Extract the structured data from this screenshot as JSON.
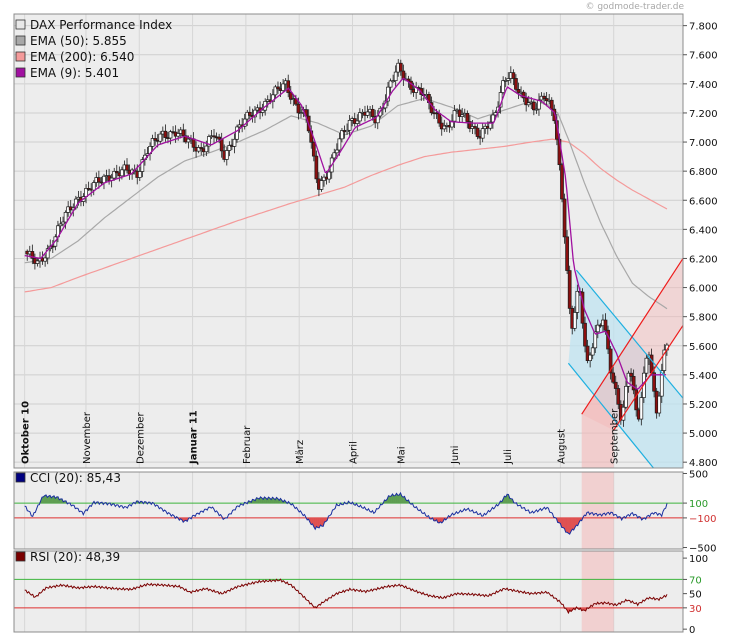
{
  "watermark": "© godmode-trader.de",
  "chart_data": {
    "type": "candlestick",
    "price_panel": {
      "y_ticks": [
        "7.800",
        "7.600",
        "7.400",
        "7.200",
        "7.000",
        "6.800",
        "6.600",
        "6.400",
        "6.200",
        "6.000",
        "5.800",
        "5.600",
        "5.400",
        "5.200",
        "5.000",
        "4.800"
      ],
      "y_tick_values": [
        7800,
        7600,
        7400,
        7200,
        7000,
        6800,
        6600,
        6400,
        6200,
        6000,
        5800,
        5600,
        5400,
        5200,
        5000,
        4800
      ],
      "ylim": [
        4760,
        7880
      ],
      "x_labels": [
        "Oktober 10",
        "November",
        "Dezember",
        "Januar 11",
        "Februar",
        "März",
        "April",
        "Mai",
        "Juni",
        "Juli",
        "August",
        "September"
      ],
      "x_label_bold": [
        true,
        false,
        false,
        true,
        false,
        false,
        false,
        false,
        false,
        false,
        false,
        false
      ],
      "x_label_time": [
        0.0,
        1.15,
        2.15,
        3.15,
        4.15,
        5.15,
        6.15,
        7.05,
        8.05,
        9.05,
        10.05,
        11.05
      ],
      "x_range": [
        -0.2,
        12.35
      ],
      "legend": [
        {
          "label": "DAX Performance Index",
          "color": "#e8e8e8"
        },
        {
          "label": "EMA (50): 5.855",
          "color": "#a8a8a8"
        },
        {
          "label": "EMA (200): 6.540",
          "color": "#f49a9a"
        },
        {
          "label": "EMA (9): 5.401",
          "color": "#a010a0"
        }
      ],
      "price_anchors": [
        {
          "t": 0.0,
          "p": 6250
        },
        {
          "t": 0.25,
          "p": 6150
        },
        {
          "t": 0.45,
          "p": 6270
        },
        {
          "t": 0.7,
          "p": 6450
        },
        {
          "t": 1.0,
          "p": 6620
        },
        {
          "t": 1.3,
          "p": 6700
        },
        {
          "t": 1.6,
          "p": 6780
        },
        {
          "t": 1.9,
          "p": 6800
        },
        {
          "t": 2.1,
          "p": 6780
        },
        {
          "t": 2.3,
          "p": 6950
        },
        {
          "t": 2.6,
          "p": 7050
        },
        {
          "t": 2.85,
          "p": 7080
        },
        {
          "t": 3.05,
          "p": 7000
        },
        {
          "t": 3.3,
          "p": 6950
        },
        {
          "t": 3.55,
          "p": 7050
        },
        {
          "t": 3.75,
          "p": 6900
        },
        {
          "t": 4.0,
          "p": 7100
        },
        {
          "t": 4.3,
          "p": 7200
        },
        {
          "t": 4.6,
          "p": 7300
        },
        {
          "t": 4.9,
          "p": 7400
        },
        {
          "t": 5.1,
          "p": 7250
        },
        {
          "t": 5.3,
          "p": 7150
        },
        {
          "t": 5.5,
          "p": 6700
        },
        {
          "t": 5.7,
          "p": 6800
        },
        {
          "t": 5.9,
          "p": 7000
        },
        {
          "t": 6.1,
          "p": 7150
        },
        {
          "t": 6.4,
          "p": 7200
        },
        {
          "t": 6.6,
          "p": 7150
        },
        {
          "t": 6.85,
          "p": 7400
        },
        {
          "t": 7.0,
          "p": 7500
        },
        {
          "t": 7.2,
          "p": 7400
        },
        {
          "t": 7.45,
          "p": 7350
        },
        {
          "t": 7.65,
          "p": 7200
        },
        {
          "t": 7.9,
          "p": 7100
        },
        {
          "t": 8.1,
          "p": 7200
        },
        {
          "t": 8.3,
          "p": 7150
        },
        {
          "t": 8.55,
          "p": 7050
        },
        {
          "t": 8.8,
          "p": 7150
        },
        {
          "t": 9.0,
          "p": 7450
        },
        {
          "t": 9.1,
          "p": 7480
        },
        {
          "t": 9.3,
          "p": 7300
        },
        {
          "t": 9.55,
          "p": 7250
        },
        {
          "t": 9.75,
          "p": 7320
        },
        {
          "t": 9.95,
          "p": 7150
        },
        {
          "t": 10.1,
          "p": 6550
        },
        {
          "t": 10.25,
          "p": 5700
        },
        {
          "t": 10.4,
          "p": 6000
        },
        {
          "t": 10.55,
          "p": 5450
        },
        {
          "t": 10.7,
          "p": 5700
        },
        {
          "t": 10.85,
          "p": 5800
        },
        {
          "t": 11.0,
          "p": 5400
        },
        {
          "t": 11.2,
          "p": 5100
        },
        {
          "t": 11.35,
          "p": 5500
        },
        {
          "t": 11.5,
          "p": 5050
        },
        {
          "t": 11.7,
          "p": 5600
        },
        {
          "t": 11.85,
          "p": 5150
        },
        {
          "t": 12.0,
          "p": 5550
        },
        {
          "t": 12.05,
          "p": 5620
        }
      ],
      "ema50_anchors": [
        {
          "t": 0.0,
          "p": 6170
        },
        {
          "t": 0.5,
          "p": 6200
        },
        {
          "t": 1.0,
          "p": 6320
        },
        {
          "t": 1.5,
          "p": 6480
        },
        {
          "t": 2.0,
          "p": 6620
        },
        {
          "t": 2.5,
          "p": 6760
        },
        {
          "t": 3.0,
          "p": 6870
        },
        {
          "t": 3.5,
          "p": 6930
        },
        {
          "t": 4.0,
          "p": 7000
        },
        {
          "t": 4.5,
          "p": 7080
        },
        {
          "t": 5.0,
          "p": 7180
        },
        {
          "t": 5.5,
          "p": 7130
        },
        {
          "t": 6.0,
          "p": 7050
        },
        {
          "t": 6.5,
          "p": 7110
        },
        {
          "t": 7.0,
          "p": 7250
        },
        {
          "t": 7.5,
          "p": 7300
        },
        {
          "t": 8.0,
          "p": 7240
        },
        {
          "t": 8.5,
          "p": 7160
        },
        {
          "t": 9.0,
          "p": 7220
        },
        {
          "t": 9.5,
          "p": 7280
        },
        {
          "t": 9.8,
          "p": 7260
        },
        {
          "t": 10.0,
          "p": 7200
        },
        {
          "t": 10.2,
          "p": 7020
        },
        {
          "t": 10.5,
          "p": 6720
        },
        {
          "t": 10.8,
          "p": 6450
        },
        {
          "t": 11.1,
          "p": 6220
        },
        {
          "t": 11.4,
          "p": 6030
        },
        {
          "t": 11.7,
          "p": 5940
        },
        {
          "t": 12.05,
          "p": 5855
        }
      ],
      "ema200_anchors": [
        {
          "t": 0.0,
          "p": 5970
        },
        {
          "t": 0.5,
          "p": 6000
        },
        {
          "t": 1.0,
          "p": 6070
        },
        {
          "t": 2.0,
          "p": 6200
        },
        {
          "t": 3.0,
          "p": 6330
        },
        {
          "t": 4.0,
          "p": 6460
        },
        {
          "t": 5.0,
          "p": 6580
        },
        {
          "t": 6.0,
          "p": 6690
        },
        {
          "t": 6.5,
          "p": 6770
        },
        {
          "t": 7.0,
          "p": 6840
        },
        {
          "t": 7.5,
          "p": 6900
        },
        {
          "t": 8.0,
          "p": 6930
        },
        {
          "t": 8.5,
          "p": 6950
        },
        {
          "t": 9.0,
          "p": 6970
        },
        {
          "t": 9.5,
          "p": 7000
        },
        {
          "t": 9.9,
          "p": 7020
        },
        {
          "t": 10.2,
          "p": 7000
        },
        {
          "t": 10.5,
          "p": 6920
        },
        {
          "t": 10.8,
          "p": 6820
        },
        {
          "t": 11.1,
          "p": 6740
        },
        {
          "t": 11.4,
          "p": 6670
        },
        {
          "t": 11.7,
          "p": 6610
        },
        {
          "t": 12.05,
          "p": 6540
        }
      ],
      "ema9_anchors": [
        {
          "t": 0.0,
          "p": 6220
        },
        {
          "t": 0.3,
          "p": 6200
        },
        {
          "t": 0.6,
          "p": 6330
        },
        {
          "t": 1.0,
          "p": 6580
        },
        {
          "t": 1.5,
          "p": 6720
        },
        {
          "t": 2.0,
          "p": 6780
        },
        {
          "t": 2.5,
          "p": 6980
        },
        {
          "t": 3.0,
          "p": 7040
        },
        {
          "t": 3.5,
          "p": 6980
        },
        {
          "t": 4.0,
          "p": 7080
        },
        {
          "t": 4.5,
          "p": 7240
        },
        {
          "t": 4.95,
          "p": 7370
        },
        {
          "t": 5.2,
          "p": 7250
        },
        {
          "t": 5.45,
          "p": 7000
        },
        {
          "t": 5.65,
          "p": 6780
        },
        {
          "t": 5.9,
          "p": 6920
        },
        {
          "t": 6.2,
          "p": 7100
        },
        {
          "t": 6.6,
          "p": 7170
        },
        {
          "t": 6.9,
          "p": 7350
        },
        {
          "t": 7.1,
          "p": 7440
        },
        {
          "t": 7.4,
          "p": 7360
        },
        {
          "t": 7.7,
          "p": 7220
        },
        {
          "t": 8.0,
          "p": 7140
        },
        {
          "t": 8.4,
          "p": 7130
        },
        {
          "t": 8.8,
          "p": 7130
        },
        {
          "t": 9.05,
          "p": 7380
        },
        {
          "t": 9.3,
          "p": 7320
        },
        {
          "t": 9.7,
          "p": 7280
        },
        {
          "t": 9.95,
          "p": 7200
        },
        {
          "t": 10.15,
          "p": 6750
        },
        {
          "t": 10.3,
          "p": 6150
        },
        {
          "t": 10.5,
          "p": 5850
        },
        {
          "t": 10.7,
          "p": 5680
        },
        {
          "t": 10.9,
          "p": 5700
        },
        {
          "t": 11.1,
          "p": 5550
        },
        {
          "t": 11.3,
          "p": 5350
        },
        {
          "t": 11.5,
          "p": 5300
        },
        {
          "t": 11.75,
          "p": 5400
        },
        {
          "t": 12.05,
          "p": 5401
        }
      ],
      "down_channel": {
        "upper": [
          {
            "t": 10.35,
            "p": 6120
          },
          {
            "t": 12.35,
            "p": 5240
          }
        ],
        "lower": [
          {
            "t": 10.2,
            "p": 5480
          },
          {
            "t": 12.35,
            "p": 4510
          }
        ]
      },
      "up_channel": {
        "upper": [
          {
            "t": 10.45,
            "p": 5130
          },
          {
            "t": 12.35,
            "p": 6200
          }
        ],
        "lower": [
          {
            "t": 11.05,
            "p": 5020
          },
          {
            "t": 12.35,
            "p": 5740
          }
        ]
      },
      "highlight_band": [
        10.45,
        11.05
      ]
    },
    "cci_panel": {
      "legend": {
        "label": "CCI (20): 85,43",
        "color": "#000080"
      },
      "y_ticks": [
        "500",
        "100",
        "−100",
        "−500"
      ],
      "y_tick_values": [
        500,
        100,
        -100,
        -500
      ],
      "ylim": [
        -520,
        520
      ],
      "ref_high": 100,
      "ref_low": -100,
      "anchors": [
        {
          "t": 0.0,
          "p": 60
        },
        {
          "t": 0.15,
          "p": -80
        },
        {
          "t": 0.35,
          "p": 200
        },
        {
          "t": 0.6,
          "p": 180
        },
        {
          "t": 0.9,
          "p": 70
        },
        {
          "t": 1.1,
          "p": -40
        },
        {
          "t": 1.3,
          "p": 110
        },
        {
          "t": 1.6,
          "p": 90
        },
        {
          "t": 1.9,
          "p": 40
        },
        {
          "t": 2.1,
          "p": 120
        },
        {
          "t": 2.4,
          "p": 100
        },
        {
          "t": 2.7,
          "p": -40
        },
        {
          "t": 3.0,
          "p": -150
        },
        {
          "t": 3.2,
          "p": -60
        },
        {
          "t": 3.5,
          "p": 50
        },
        {
          "t": 3.75,
          "p": -120
        },
        {
          "t": 4.0,
          "p": 60
        },
        {
          "t": 4.4,
          "p": 170
        },
        {
          "t": 4.75,
          "p": 160
        },
        {
          "t": 5.0,
          "p": 90
        },
        {
          "t": 5.25,
          "p": -70
        },
        {
          "t": 5.45,
          "p": -240
        },
        {
          "t": 5.6,
          "p": -200
        },
        {
          "t": 5.85,
          "p": 70
        },
        {
          "t": 6.1,
          "p": 110
        },
        {
          "t": 6.35,
          "p": 40
        },
        {
          "t": 6.55,
          "p": -30
        },
        {
          "t": 6.85,
          "p": 200
        },
        {
          "t": 7.05,
          "p": 220
        },
        {
          "t": 7.3,
          "p": 60
        },
        {
          "t": 7.6,
          "p": -100
        },
        {
          "t": 7.8,
          "p": -170
        },
        {
          "t": 8.0,
          "p": -60
        },
        {
          "t": 8.3,
          "p": 20
        },
        {
          "t": 8.6,
          "p": -70
        },
        {
          "t": 8.9,
          "p": 90
        },
        {
          "t": 9.05,
          "p": 220
        },
        {
          "t": 9.2,
          "p": 100
        },
        {
          "t": 9.5,
          "p": -30
        },
        {
          "t": 9.8,
          "p": 40
        },
        {
          "t": 10.05,
          "p": -190
        },
        {
          "t": 10.2,
          "p": -320
        },
        {
          "t": 10.35,
          "p": -210
        },
        {
          "t": 10.55,
          "p": -30
        },
        {
          "t": 10.8,
          "p": -60
        },
        {
          "t": 11.0,
          "p": -30
        },
        {
          "t": 11.2,
          "p": -110
        },
        {
          "t": 11.4,
          "p": -40
        },
        {
          "t": 11.6,
          "p": -120
        },
        {
          "t": 11.8,
          "p": -30
        },
        {
          "t": 11.95,
          "p": -60
        },
        {
          "t": 12.05,
          "p": 85
        }
      ]
    },
    "rsi_panel": {
      "legend": {
        "label": "RSI (20): 48,39",
        "color": "#7a0000"
      },
      "y_ticks": [
        "100",
        "70",
        "50",
        "30",
        "0"
      ],
      "y_tick_values": [
        100,
        70,
        50,
        30,
        0
      ],
      "ylim": [
        -4,
        110
      ],
      "ref_high": 70,
      "ref_low": 30,
      "anchors": [
        {
          "t": 0.0,
          "p": 55
        },
        {
          "t": 0.2,
          "p": 45
        },
        {
          "t": 0.4,
          "p": 58
        },
        {
          "t": 0.7,
          "p": 62
        },
        {
          "t": 1.0,
          "p": 58
        },
        {
          "t": 1.3,
          "p": 60
        },
        {
          "t": 1.7,
          "p": 57
        },
        {
          "t": 2.0,
          "p": 56
        },
        {
          "t": 2.3,
          "p": 63
        },
        {
          "t": 2.6,
          "p": 62
        },
        {
          "t": 2.9,
          "p": 60
        },
        {
          "t": 3.1,
          "p": 52
        },
        {
          "t": 3.4,
          "p": 57
        },
        {
          "t": 3.7,
          "p": 50
        },
        {
          "t": 4.0,
          "p": 60
        },
        {
          "t": 4.4,
          "p": 67
        },
        {
          "t": 4.8,
          "p": 69
        },
        {
          "t": 5.0,
          "p": 62
        },
        {
          "t": 5.2,
          "p": 48
        },
        {
          "t": 5.45,
          "p": 30
        },
        {
          "t": 5.6,
          "p": 38
        },
        {
          "t": 5.85,
          "p": 50
        },
        {
          "t": 6.1,
          "p": 56
        },
        {
          "t": 6.4,
          "p": 53
        },
        {
          "t": 6.8,
          "p": 60
        },
        {
          "t": 7.05,
          "p": 62
        },
        {
          "t": 7.35,
          "p": 53
        },
        {
          "t": 7.6,
          "p": 47
        },
        {
          "t": 7.85,
          "p": 44
        },
        {
          "t": 8.1,
          "p": 50
        },
        {
          "t": 8.4,
          "p": 49
        },
        {
          "t": 8.7,
          "p": 47
        },
        {
          "t": 9.0,
          "p": 57
        },
        {
          "t": 9.2,
          "p": 54
        },
        {
          "t": 9.5,
          "p": 50
        },
        {
          "t": 9.8,
          "p": 52
        },
        {
          "t": 10.05,
          "p": 38
        },
        {
          "t": 10.2,
          "p": 24
        },
        {
          "t": 10.35,
          "p": 30
        },
        {
          "t": 10.5,
          "p": 26
        },
        {
          "t": 10.7,
          "p": 36
        },
        {
          "t": 10.9,
          "p": 37
        },
        {
          "t": 11.1,
          "p": 34
        },
        {
          "t": 11.3,
          "p": 41
        },
        {
          "t": 11.5,
          "p": 35
        },
        {
          "t": 11.7,
          "p": 44
        },
        {
          "t": 11.9,
          "p": 42
        },
        {
          "t": 12.05,
          "p": 48
        }
      ]
    }
  }
}
